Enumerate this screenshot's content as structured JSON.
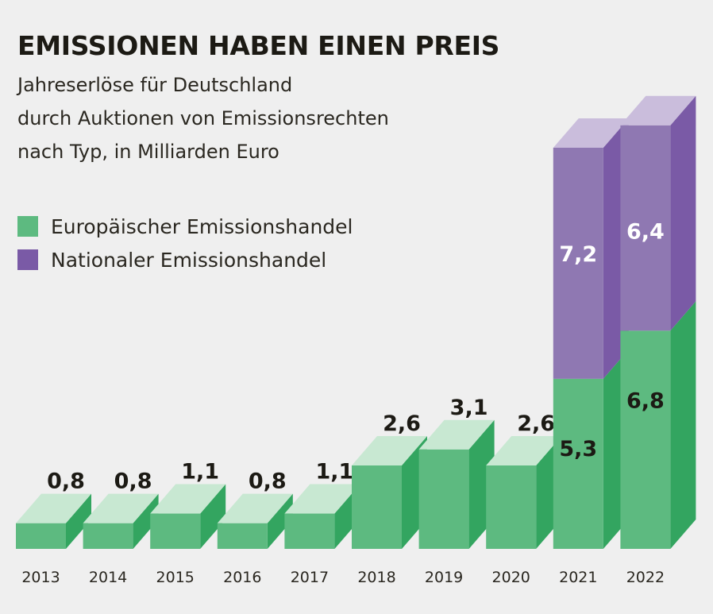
{
  "title": "EMISSIONEN HABEN EINEN PREIS",
  "subtitle_lines": [
    "Jahreserlöse für Deutschland",
    "durch Auktionen von Emissionsrechten",
    "nach Typ, in Milliarden Euro"
  ],
  "colors": {
    "green_front": "#5dba80",
    "green_side": "#33a560",
    "green_top": "#c8e8d2",
    "purple_front": "#8f78b2",
    "purple_side": "#7a5aa6",
    "purple_top": "#cabddc",
    "label_dark": "#1c1a14",
    "label_light": "#ffffff"
  },
  "chart_data": {
    "type": "bar",
    "stacked": true,
    "categories": [
      "2013",
      "2014",
      "2015",
      "2016",
      "2017",
      "2018",
      "2019",
      "2020",
      "2021",
      "2022"
    ],
    "series": [
      {
        "name": "Europäischer Emissionshandel",
        "values": [
          0.8,
          0.8,
          1.1,
          0.8,
          1.1,
          2.6,
          3.1,
          2.6,
          5.3,
          6.8
        ],
        "labels": [
          "0,8",
          "0,8",
          "1,1",
          "0,8",
          "1,1",
          "2,6",
          "3,1",
          "2,6",
          "5,3",
          "6,8"
        ]
      },
      {
        "name": "Nationaler Emissionshandel",
        "values": [
          0,
          0,
          0,
          0,
          0,
          0,
          0,
          0,
          7.2,
          6.4
        ],
        "labels": [
          "",
          "",
          "",
          "",
          "",
          "",
          "",
          "",
          "7,2",
          "6,4"
        ]
      }
    ],
    "grid": false,
    "legend_position": "top-left",
    "ylim": [
      0,
      13.2
    ]
  }
}
